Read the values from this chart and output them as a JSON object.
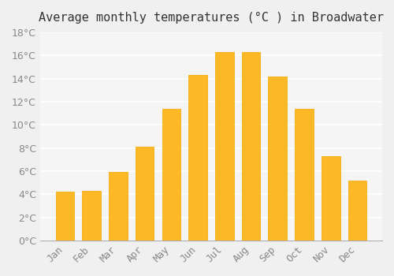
{
  "title": "Average monthly temperatures (°C ) in Broadwater",
  "months": [
    "Jan",
    "Feb",
    "Mar",
    "Apr",
    "May",
    "Jun",
    "Jul",
    "Aug",
    "Sep",
    "Oct",
    "Nov",
    "Dec"
  ],
  "values": [
    4.2,
    4.3,
    5.9,
    8.1,
    11.4,
    14.3,
    16.3,
    16.3,
    14.2,
    11.4,
    7.3,
    5.2
  ],
  "bar_color_main": "#FDB827",
  "bar_color_edge": "#F5A500",
  "background_color": "#f0f0f0",
  "plot_background": "#f5f5f5",
  "ylim": [
    0,
    18
  ],
  "ytick_step": 2,
  "title_fontsize": 11,
  "tick_fontsize": 9,
  "grid_color": "#ffffff",
  "grid_linewidth": 1.2
}
